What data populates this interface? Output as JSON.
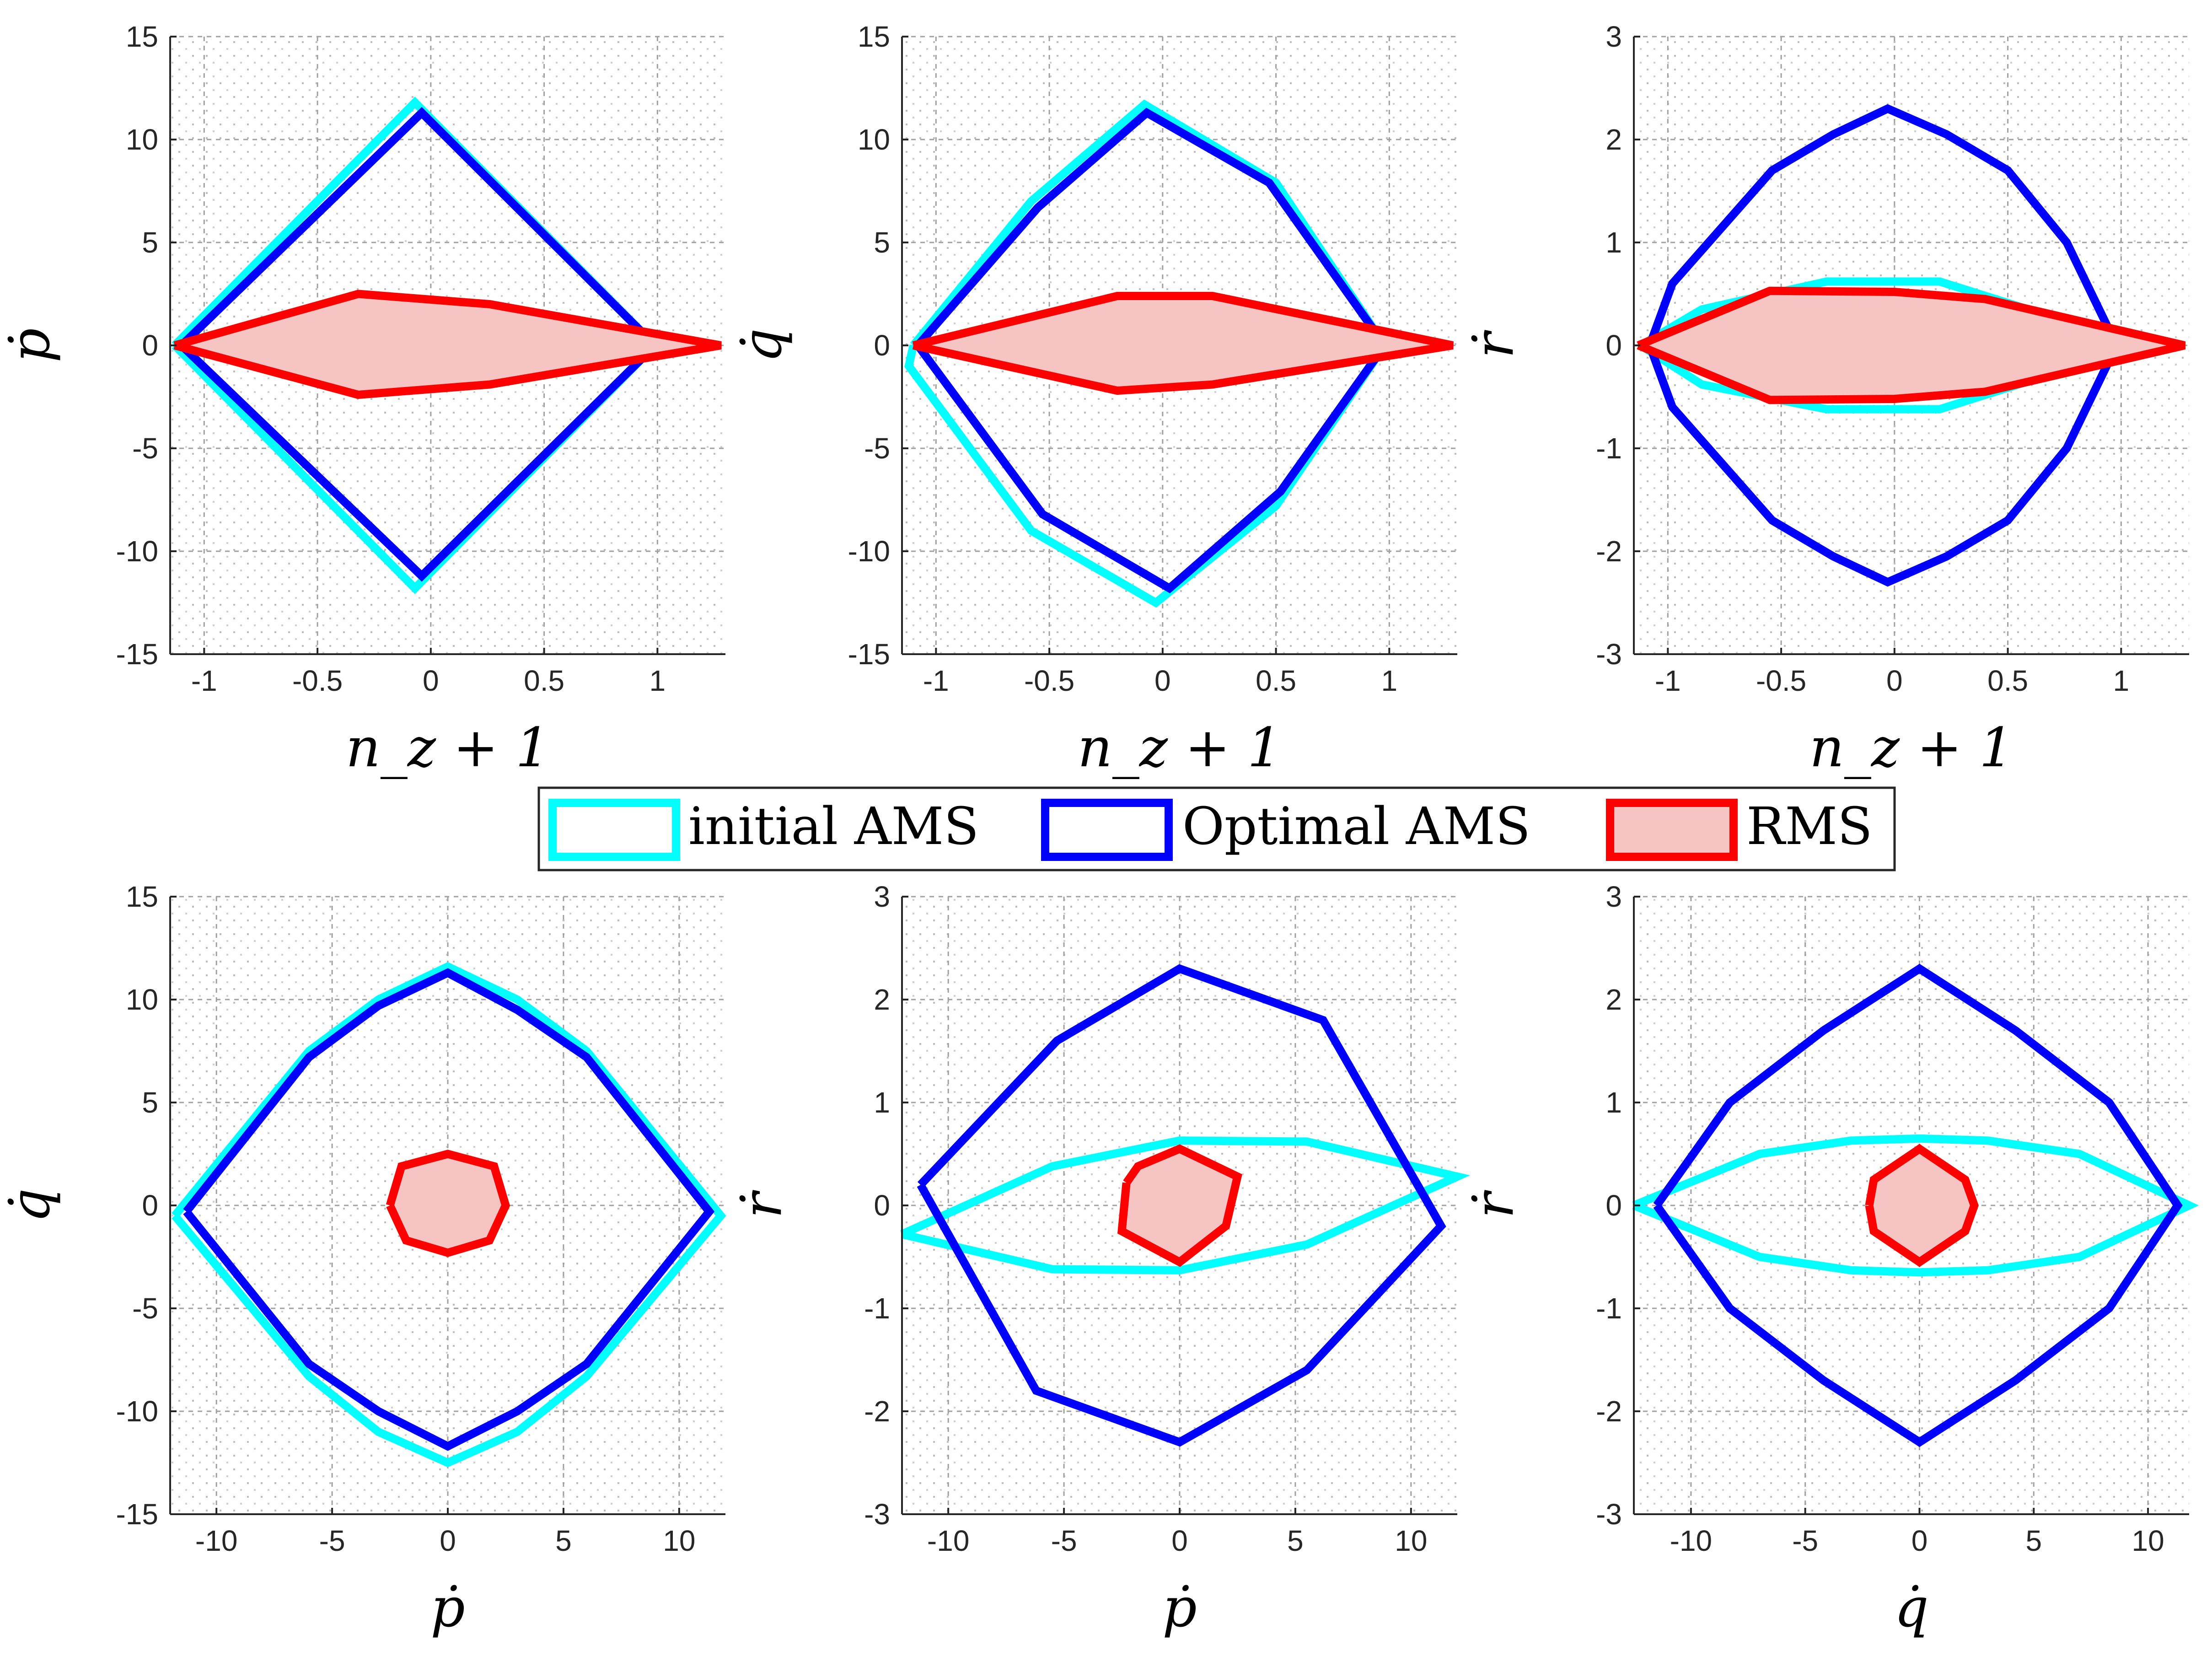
{
  "chart_data": [
    {
      "type": "line",
      "xlabel": "n_z + 1",
      "ylabel": "ṗ",
      "xlim": [
        -1.15,
        1.3
      ],
      "ylim": [
        -15,
        15
      ],
      "xticks": [
        -1,
        -0.5,
        0,
        0.5,
        1
      ],
      "yticks": [
        -15,
        -10,
        -5,
        0,
        5,
        10,
        15
      ],
      "xtick_labels": [
        "-1",
        "-0.5",
        "0",
        "0.5",
        "1"
      ],
      "ytick_labels": [
        "-15",
        "-10",
        "-5",
        "0",
        "5",
        "10",
        "15"
      ],
      "series": [
        {
          "name": "initial AMS",
          "x": [
            -1.13,
            -0.07,
            0.99,
            -0.07,
            -1.13
          ],
          "y": [
            0,
            11.8,
            0,
            -11.8,
            0
          ]
        },
        {
          "name": "Optimal AMS",
          "x": [
            -1.1,
            -0.04,
            0.99,
            -0.04,
            -1.1
          ],
          "y": [
            0,
            11.3,
            0,
            -11.2,
            0
          ]
        },
        {
          "name": "RMS",
          "x": [
            -1.13,
            -0.32,
            0.26,
            1.28,
            0.26,
            -0.32,
            -1.13
          ],
          "y": [
            0,
            2.5,
            2.0,
            0,
            -1.9,
            -2.4,
            0
          ]
        }
      ]
    },
    {
      "type": "line",
      "xlabel": "n_z + 1",
      "ylabel": "q̇",
      "xlim": [
        -1.15,
        1.3
      ],
      "ylim": [
        -15,
        15
      ],
      "xticks": [
        -1,
        -0.5,
        0,
        0.5,
        1
      ],
      "yticks": [
        -15,
        -10,
        -5,
        0,
        5,
        10,
        15
      ],
      "xtick_labels": [
        "-1",
        "-0.5",
        "0",
        "0.5",
        "1"
      ],
      "ytick_labels": [
        "-15",
        "-10",
        "-5",
        "0",
        "5",
        "10",
        "15"
      ],
      "series": [
        {
          "name": "initial AMS",
          "x": [
            -1.1,
            -0.58,
            -0.08,
            0.5,
            0.98,
            0.5,
            -0.03,
            -0.58,
            -1.12,
            -1.1
          ],
          "y": [
            0,
            7.0,
            11.7,
            7.9,
            0,
            -7.8,
            -12.5,
            -9.0,
            -1.0,
            0
          ]
        },
        {
          "name": "Optimal AMS",
          "x": [
            -1.08,
            -0.55,
            -0.07,
            0.47,
            0.98,
            0.52,
            0.03,
            -0.53,
            -1.08
          ],
          "y": [
            0,
            6.7,
            11.3,
            7.9,
            0,
            -7.1,
            -11.8,
            -8.2,
            0
          ]
        },
        {
          "name": "RMS",
          "x": [
            -1.1,
            -0.2,
            0.22,
            1.28,
            0.22,
            -0.2,
            -1.1
          ],
          "y": [
            0,
            2.4,
            2.4,
            0,
            -1.9,
            -2.2,
            0
          ]
        }
      ]
    },
    {
      "type": "line",
      "xlabel": "n_z + 1",
      "ylabel": "ṙ",
      "xlim": [
        -1.15,
        1.3
      ],
      "ylim": [
        -3,
        3
      ],
      "xticks": [
        -1,
        -0.5,
        0,
        0.5,
        1
      ],
      "yticks": [
        -3,
        -2,
        -1,
        0,
        1,
        2,
        3
      ],
      "xtick_labels": [
        "-1",
        "-0.5",
        "0",
        "0.5",
        "1"
      ],
      "ytick_labels": [
        "-3",
        "-2",
        "-1",
        "0",
        "1",
        "2",
        "3"
      ],
      "series": [
        {
          "name": "initial AMS",
          "x": [
            -1.12,
            -0.85,
            -0.3,
            0.2,
            0.95,
            1.0,
            0.95,
            0.2,
            -0.3,
            -0.85,
            -1.12
          ],
          "y": [
            0,
            0.35,
            0.62,
            0.62,
            0.1,
            0,
            -0.1,
            -0.62,
            -0.62,
            -0.38,
            0
          ]
        },
        {
          "name": "Optimal AMS",
          "x": [
            -1.08,
            -0.98,
            -0.82,
            -0.54,
            -0.27,
            -0.03,
            0.23,
            0.5,
            0.76,
            0.98,
            0.76,
            0.5,
            0.23,
            -0.03,
            -0.27,
            -0.54,
            -0.82,
            -0.98,
            -1.08
          ],
          "y": [
            0,
            0.6,
            1.0,
            1.7,
            2.05,
            2.3,
            2.05,
            1.7,
            1.0,
            0,
            -1.0,
            -1.7,
            -2.05,
            -2.3,
            -2.05,
            -1.7,
            -1.0,
            -0.6,
            0
          ]
        },
        {
          "name": "RMS",
          "x": [
            -1.13,
            -0.55,
            0.0,
            0.4,
            1.28,
            0.4,
            0.0,
            -0.55,
            -1.13
          ],
          "y": [
            0,
            0.53,
            0.52,
            0.45,
            0,
            -0.45,
            -0.52,
            -0.53,
            0
          ]
        }
      ]
    },
    {
      "type": "line",
      "xlabel": "ṗ",
      "ylabel": "q̇",
      "xlim": [
        -12,
        12
      ],
      "ylim": [
        -15,
        15
      ],
      "xticks": [
        -10,
        -5,
        0,
        5,
        10
      ],
      "yticks": [
        -15,
        -10,
        -5,
        0,
        5,
        10,
        15
      ],
      "xtick_labels": [
        "-10",
        "-5",
        "0",
        "5",
        "10"
      ],
      "ytick_labels": [
        "-15",
        "-10",
        "-5",
        "0",
        "5",
        "10",
        "15"
      ],
      "series": [
        {
          "name": "initial AMS",
          "x": [
            -11.8,
            -6.0,
            -3.0,
            0,
            3.0,
            6.0,
            11.8,
            6.0,
            3.0,
            0,
            -3.0,
            -6.0,
            -11.8
          ],
          "y": [
            -0.5,
            7.5,
            10.0,
            11.6,
            10.0,
            7.5,
            -0.5,
            -8.3,
            -11.0,
            -12.5,
            -11.0,
            -8.3,
            -0.5
          ]
        },
        {
          "name": "Optimal AMS",
          "x": [
            -11.3,
            -6.0,
            -3.0,
            0,
            3.0,
            6.0,
            11.3,
            6.0,
            3.0,
            0,
            -3.0,
            -6.0,
            -11.3
          ],
          "y": [
            -0.3,
            7.2,
            9.7,
            11.3,
            9.5,
            7.2,
            -0.3,
            -7.7,
            -10.0,
            -11.7,
            -10.0,
            -7.7,
            -0.3
          ]
        },
        {
          "name": "RMS",
          "x": [
            -2.5,
            -2.0,
            0,
            2.0,
            2.5,
            1.8,
            0,
            -1.8,
            -2.5
          ],
          "y": [
            0,
            1.9,
            2.5,
            1.9,
            0,
            -1.7,
            -2.3,
            -1.7,
            0
          ]
        }
      ]
    },
    {
      "type": "line",
      "xlabel": "ṗ",
      "ylabel": "ṙ",
      "xlim": [
        -12,
        12
      ],
      "ylim": [
        -3,
        3
      ],
      "xticks": [
        -10,
        -5,
        0,
        5,
        10
      ],
      "yticks": [
        -3,
        -2,
        -1,
        0,
        1,
        2,
        3
      ],
      "xtick_labels": [
        "-10",
        "-5",
        "0",
        "5",
        "10"
      ],
      "ytick_labels": [
        "-3",
        "-2",
        "-1",
        "0",
        "1",
        "2",
        "3"
      ],
      "series": [
        {
          "name": "initial AMS",
          "x": [
            -12.0,
            -5.5,
            0,
            5.5,
            12.0,
            5.5,
            0,
            -5.5,
            -12.0
          ],
          "y": [
            -0.28,
            0.38,
            0.63,
            0.62,
            0.28,
            -0.38,
            -0.63,
            -0.62,
            -0.28
          ]
        },
        {
          "name": "Optimal AMS",
          "x": [
            -11.2,
            -5.3,
            0,
            6.2,
            11.3,
            5.5,
            0,
            -6.2,
            -11.2
          ],
          "y": [
            0.2,
            1.6,
            2.3,
            1.8,
            -0.2,
            -1.6,
            -2.3,
            -1.8,
            0.2
          ]
        },
        {
          "name": "RMS",
          "x": [
            -2.3,
            -1.8,
            0,
            2.5,
            2.0,
            0,
            -2.5,
            -2.3
          ],
          "y": [
            0.22,
            0.38,
            0.55,
            0.28,
            -0.2,
            -0.55,
            -0.25,
            0.22
          ]
        }
      ]
    },
    {
      "type": "line",
      "xlabel": "q̇",
      "ylabel": "ṙ",
      "xlim": [
        -12.5,
        11.8
      ],
      "ylim": [
        -3,
        3
      ],
      "xticks": [
        -10,
        -5,
        0,
        5,
        10
      ],
      "yticks": [
        -3,
        -2,
        -1,
        0,
        1,
        2,
        3
      ],
      "xtick_labels": [
        "-10",
        "-5",
        "0",
        "5",
        "10"
      ],
      "ytick_labels": [
        "-3",
        "-2",
        "-1",
        "0",
        "1",
        "2",
        "3"
      ],
      "series": [
        {
          "name": "initial AMS",
          "x": [
            -12.5,
            -7.0,
            -3.0,
            0,
            3.0,
            7.0,
            11.8,
            7.0,
            3.0,
            0,
            -3.0,
            -7.0,
            -12.5
          ],
          "y": [
            0,
            0.5,
            0.63,
            0.65,
            0.63,
            0.5,
            0,
            -0.5,
            -0.63,
            -0.65,
            -0.63,
            -0.5,
            0
          ]
        },
        {
          "name": "Optimal AMS",
          "x": [
            -11.5,
            -8.3,
            -4.2,
            0,
            4.2,
            8.3,
            11.3,
            8.3,
            4.2,
            0,
            -4.2,
            -8.3,
            -11.5
          ],
          "y": [
            0,
            1.0,
            1.7,
            2.3,
            1.7,
            1.0,
            0,
            -1.0,
            -1.7,
            -2.3,
            -1.7,
            -1.0,
            0
          ]
        },
        {
          "name": "RMS",
          "x": [
            -2.2,
            -2.0,
            0,
            2.0,
            2.4,
            2.0,
            0,
            -2.0,
            -2.2
          ],
          "y": [
            0,
            0.25,
            0.55,
            0.25,
            0,
            -0.25,
            -0.55,
            -0.25,
            0
          ]
        }
      ]
    }
  ],
  "legend": {
    "entries": [
      "initial AMS",
      "Optimal AMS",
      "RMS"
    ]
  },
  "colors": {
    "initial AMS": "#00ffff",
    "Optimal AMS": "#0000ff",
    "RMS": "#ff0000",
    "rms_fill": "#f7c4c4",
    "grid": "#a0a0a0"
  }
}
